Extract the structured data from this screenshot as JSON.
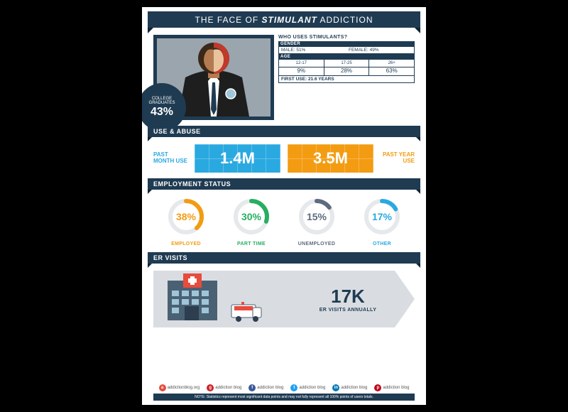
{
  "title": {
    "pre": "THE FACE OF ",
    "highlight": "STIMULANT",
    "post": " ADDICTION"
  },
  "colors": {
    "navy": "#1f3b52",
    "navy_dark": "#0f2433",
    "blue": "#2aa9e0",
    "orange": "#f39c12",
    "green": "#27ae60",
    "gray": "#5d6d7e",
    "lightgray": "#9aa5ae",
    "red": "#e74c3c"
  },
  "badge": {
    "line1": "COLLEGE",
    "line2": "GRADUATES",
    "pct": "43%"
  },
  "stats": {
    "question": "WHO USES STIMULANTS?",
    "gender_header": "GENDER",
    "gender": {
      "male_label": "MALE:",
      "male_val": "51%",
      "female_label": "FEMALE:",
      "female_val": "49%"
    },
    "age_header": "AGE",
    "age_groups": [
      {
        "range": "12-17",
        "pct": "9%"
      },
      {
        "range": "17-25",
        "pct": "28%"
      },
      {
        "range": "26+",
        "pct": "63%"
      }
    ],
    "firstuse_label": "FIRST USE:",
    "firstuse_val": "21.6 YEARS"
  },
  "sections": {
    "use_abuse": "USE & ABUSE",
    "employment": "EMPLOYMENT STATUS",
    "er": "ER VISITS"
  },
  "use": {
    "past_month_label": "PAST MONTH USE",
    "past_month_val": "1.4M",
    "past_year_label": "PAST YEAR USE",
    "past_year_val": "3.5M"
  },
  "employment": [
    {
      "pct": 38,
      "label": "EMPLOYED",
      "color": "#f39c12"
    },
    {
      "pct": 30,
      "label": "PART TIME",
      "color": "#27ae60"
    },
    {
      "pct": 15,
      "label": "UNEMPLOYED",
      "color": "#5d6d7e"
    },
    {
      "pct": 17,
      "label": "OTHER",
      "color": "#2aa9e0"
    }
  ],
  "er": {
    "value": "17K",
    "label": "ER VISITS ANNUALLY"
  },
  "footer": {
    "site": "addictionblog.org",
    "handle": "addiction blog",
    "note": "NOTE: Statistics represent most significant data points and may not fully represent all 100% points of users totals.",
    "social_colors": [
      "#e74c3c",
      "#cc2127",
      "#3b5998",
      "#1da1f2",
      "#0077b5",
      "#bd081c"
    ]
  }
}
